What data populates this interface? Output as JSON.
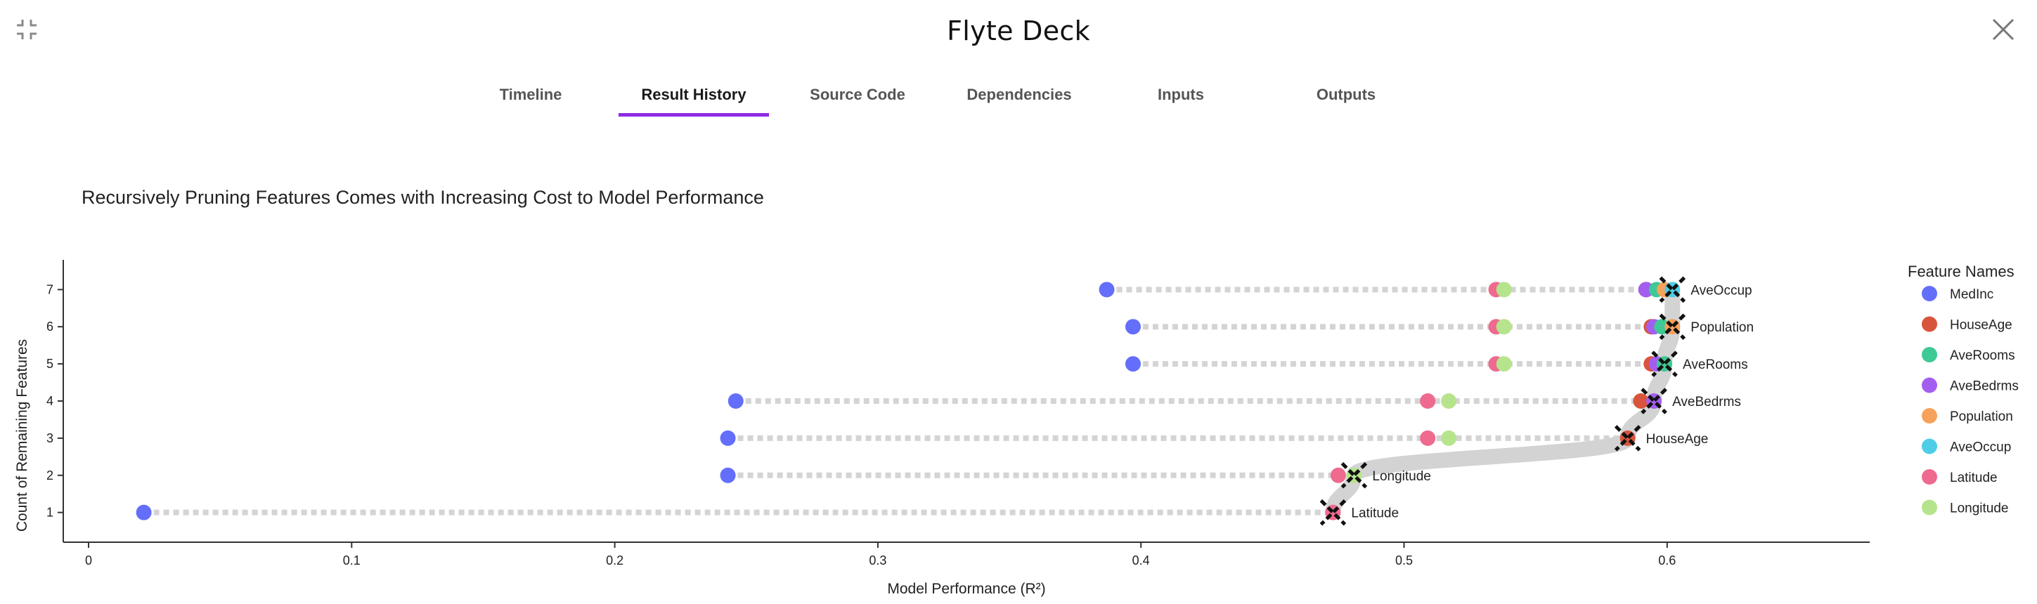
{
  "window": {
    "title": "Flyte Deck",
    "collapse_icon": "collapse-icon",
    "close_icon": "close-icon"
  },
  "tabs": [
    {
      "label": "Timeline",
      "active": false
    },
    {
      "label": "Result History",
      "active": true
    },
    {
      "label": "Source Code",
      "active": false
    },
    {
      "label": "Dependencies",
      "active": false
    },
    {
      "label": "Inputs",
      "active": false
    },
    {
      "label": "Outputs",
      "active": false
    }
  ],
  "accent_color": "#8e2be2",
  "chart_data": {
    "type": "scatter",
    "title": "Recursively Pruning Features Comes with Increasing Cost to Model Performance",
    "xlabel": "Model Performance (R²)",
    "ylabel": "Count of Remaining Features",
    "xlim": [
      0,
      0.677
    ],
    "ylim": [
      0.2,
      7.8
    ],
    "x_ticks": [
      "0",
      "0.1",
      "0.2",
      "0.3",
      "0.4",
      "0.5",
      "0.6"
    ],
    "y_ticks": [
      "1",
      "2",
      "3",
      "4",
      "5",
      "6",
      "7"
    ],
    "grid": false,
    "legend": {
      "title": "Feature Names",
      "placement": "right"
    },
    "series": [
      {
        "name": "MedInc",
        "color": "#636efa"
      },
      {
        "name": "HouseAge",
        "color": "#d9543c"
      },
      {
        "name": "AveRooms",
        "color": "#3fc994"
      },
      {
        "name": "AveBedrms",
        "color": "#a35ef0"
      },
      {
        "name": "Population",
        "color": "#f7a15b"
      },
      {
        "name": "AveOccup",
        "color": "#4fcde6"
      },
      {
        "name": "Latitude",
        "color": "#ee6a8e"
      },
      {
        "name": "Longitude",
        "color": "#b6e48c"
      }
    ],
    "rows": [
      {
        "count": 1,
        "points": {
          "MedInc": 0.021,
          "Latitude": 0.473
        },
        "removed": "Latitude",
        "removed_x": 0.473
      },
      {
        "count": 2,
        "points": {
          "MedInc": 0.243,
          "Latitude": 0.475,
          "Longitude": 0.481
        },
        "removed": "Longitude",
        "removed_x": 0.481
      },
      {
        "count": 3,
        "points": {
          "MedInc": 0.243,
          "Latitude": 0.509,
          "Longitude": 0.517,
          "HouseAge": 0.585
        },
        "removed": "HouseAge",
        "removed_x": 0.585
      },
      {
        "count": 4,
        "points": {
          "MedInc": 0.246,
          "Latitude": 0.509,
          "Longitude": 0.517,
          "HouseAge": 0.59,
          "AveBedrms": 0.595
        },
        "removed": "AveBedrms",
        "removed_x": 0.595
      },
      {
        "count": 5,
        "points": {
          "MedInc": 0.397,
          "Latitude": 0.535,
          "Longitude": 0.538,
          "HouseAge": 0.594,
          "AveBedrms": 0.596,
          "AveRooms": 0.599
        },
        "removed": "AveRooms",
        "removed_x": 0.599
      },
      {
        "count": 6,
        "points": {
          "MedInc": 0.397,
          "Latitude": 0.535,
          "Longitude": 0.538,
          "HouseAge": 0.594,
          "AveBedrms": 0.595,
          "AveRooms": 0.598,
          "Population": 0.602
        },
        "removed": "Population",
        "removed_x": 0.602
      },
      {
        "count": 7,
        "points": {
          "MedInc": 0.387,
          "Latitude": 0.535,
          "Longitude": 0.538,
          "HouseAge": 0.592,
          "AveBedrms": 0.592,
          "AveRooms": 0.596,
          "Population": 0.599,
          "AveOccup": 0.602
        },
        "removed": "AveOccup",
        "removed_x": 0.602
      }
    ]
  }
}
